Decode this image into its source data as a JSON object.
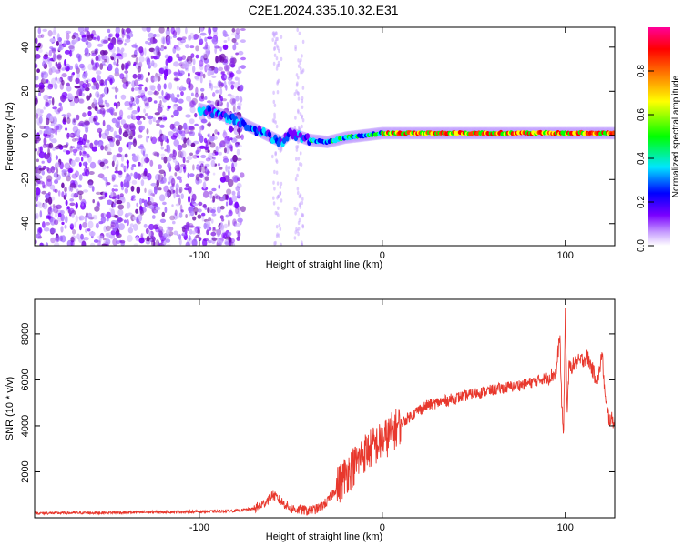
{
  "title": "C2E1.2024.335.10.32.E31",
  "chart_data": [
    {
      "type": "heatmap",
      "xlabel": "Height of straight line (km)",
      "ylabel": "Frequency (Hz)",
      "xlim": [
        -190,
        127
      ],
      "ylim": [
        -50,
        49
      ],
      "x_ticks": [
        -100,
        0,
        100
      ],
      "y_ticks": [
        -40,
        -20,
        0,
        20,
        40
      ],
      "colorbar": {
        "label": "Normalized spectral amplitude",
        "range": [
          0,
          1
        ],
        "ticks": [
          0.0,
          0.2,
          0.4,
          0.6,
          0.8
        ],
        "colors": [
          "#ffffff",
          "#c8a0ff",
          "#7a00ff",
          "#0000ff",
          "#00e6ff",
          "#00ff00",
          "#ffff00",
          "#ff8000",
          "#ff0000",
          "#ff0099"
        ]
      },
      "ridge": {
        "x": [
          -100,
          -90,
          -80,
          -70,
          -60,
          -55,
          -50,
          -40,
          -30,
          -20,
          -10,
          0,
          20,
          50,
          80,
          100,
          127
        ],
        "y": [
          12,
          10,
          7,
          3,
          -1,
          -3,
          1,
          -2,
          -3,
          -1,
          0,
          1,
          1,
          1,
          1,
          1,
          1
        ]
      }
    },
    {
      "type": "line",
      "xlabel": "Height of straight line (km)",
      "ylabel": "SNR (10 * v/v)",
      "xlim": [
        -190,
        127
      ],
      "ylim": [
        0,
        9500
      ],
      "x_ticks": [
        -100,
        0,
        100
      ],
      "y_ticks": [
        2000,
        4000,
        6000,
        8000
      ],
      "series": [
        {
          "color": "#e8382d",
          "x": [
            -190,
            -170,
            -150,
            -130,
            -110,
            -90,
            -80,
            -75,
            -70,
            -65,
            -60,
            -55,
            -50,
            -45,
            -40,
            -35,
            -30,
            -25,
            -20,
            -15,
            -10,
            -5,
            0,
            5,
            10,
            15,
            20,
            25,
            30,
            40,
            50,
            60,
            70,
            80,
            90,
            95,
            97,
            98,
            99,
            100,
            101,
            102,
            105,
            110,
            112,
            114,
            116,
            118,
            120,
            122,
            124,
            127
          ],
          "y": [
            200,
            210,
            220,
            240,
            260,
            280,
            300,
            350,
            400,
            600,
            1000,
            700,
            400,
            350,
            300,
            400,
            700,
            1300,
            1900,
            2300,
            2800,
            3100,
            3300,
            3700,
            4100,
            4400,
            4700,
            4900,
            5000,
            5200,
            5400,
            5550,
            5700,
            5850,
            6100,
            6300,
            8000,
            5000,
            3500,
            9000,
            4500,
            6500,
            6700,
            6900,
            7000,
            6600,
            6200,
            6000,
            7200,
            5000,
            4300,
            4200
          ]
        }
      ]
    }
  ]
}
